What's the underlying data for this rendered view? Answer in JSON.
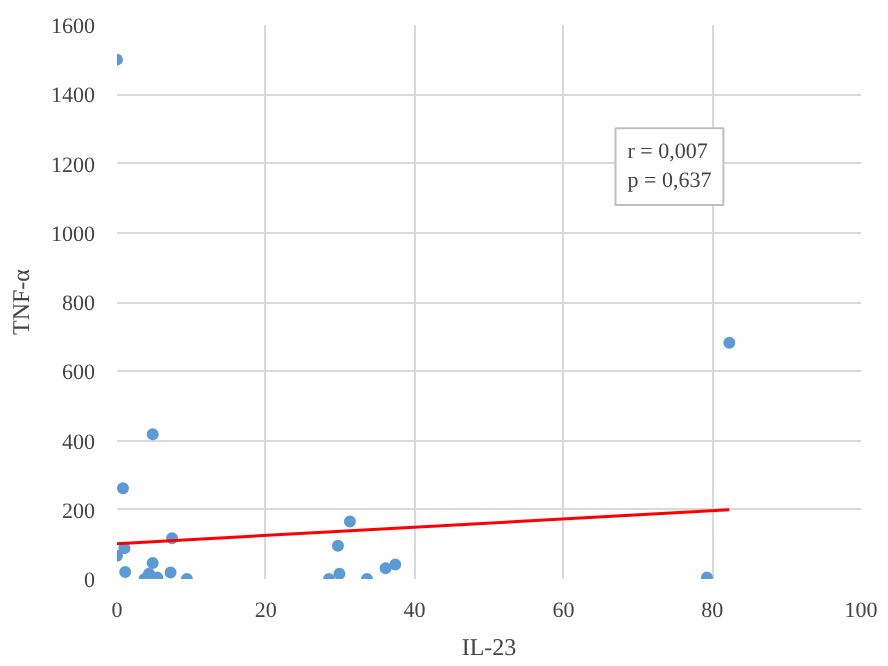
{
  "chart_data": {
    "type": "scatter",
    "xlabel": "IL-23",
    "ylabel": "TNF-α",
    "xlim": [
      0,
      100
    ],
    "ylim": [
      0,
      1600
    ],
    "xticks": [
      0,
      20,
      40,
      60,
      80,
      100
    ],
    "yticks": [
      0,
      200,
      400,
      600,
      800,
      1000,
      1200,
      1400,
      1600
    ],
    "grid": true,
    "annotations": [
      "r = 0,007\np = 0,637"
    ],
    "series": [
      {
        "color": "#5b9bd5",
        "marker": "circle",
        "x": [
          0,
          0.8,
          4.8,
          7.4,
          1.0,
          0,
          4.8,
          1.1,
          3.7,
          5.4,
          4.3,
          7.2,
          9.4,
          28.5,
          29.9,
          29.7,
          31.3,
          33.6,
          36.1,
          37.4,
          79.3,
          82.3
        ],
        "values": [
          1500,
          262,
          418,
          118,
          89,
          67,
          46,
          20,
          0,
          4,
          15,
          19,
          0,
          0,
          15,
          96,
          166,
          0,
          31,
          42,
          4,
          682
        ]
      },
      {
        "type": "line",
        "color": "#ff0000",
        "x": [
          0,
          82.3
        ],
        "values": [
          102,
          200
        ]
      }
    ]
  }
}
